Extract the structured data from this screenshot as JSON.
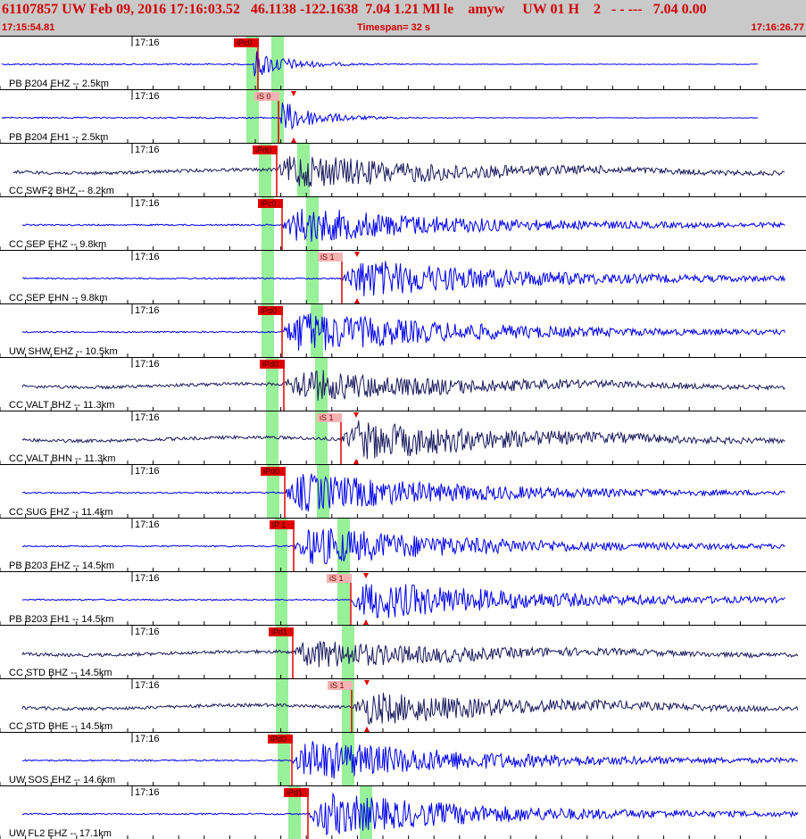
{
  "header": {
    "title": "61107857 UW Feb 09, 2016 17:16:03.52   46.1138 -122.1638  7.04 1.21 Ml le    amyw     UW 01 H    2   - - ---   7.04 0.00",
    "start_time": "17:15:54.81",
    "timespan": "Timespan=  32 s",
    "end_time": "17:16:26.77"
  },
  "colors": {
    "header_bg": "#c9c9c9",
    "header_text": "#d00000",
    "trace_blue": "#0000ee",
    "trace_navy": "#1a1a5e",
    "pick": "#e00000",
    "window": "#98f098"
  },
  "tick_label": "17:16",
  "traces": [
    {
      "label": "PB B204 EHZ -- 2.5km",
      "color": "blue",
      "pick": "iPc0",
      "pick_type": "P",
      "green": [
        283,
        311
      ],
      "onset": 285,
      "amp": 16,
      "pick_x": 262
    },
    {
      "label": "PB B204 EH1 -- 2.5km",
      "color": "blue",
      "pick": "iS 0",
      "pick_type": "S",
      "green": [
        283,
        311
      ],
      "onset": 314,
      "amp": 20,
      "pick_x": 285
    },
    {
      "label": "CC SWF2 BHZ -- 8.2km",
      "color": "navy",
      "pick": "iPd0",
      "pick_type": "P",
      "green": [
        297,
        340
      ],
      "onset": 310,
      "amp": 22,
      "pick_x": 283
    },
    {
      "label": "CC SEP EHZ -- 9.8km",
      "color": "blue",
      "pick": "iPc0",
      "pick_type": "P",
      "green": [
        300,
        350
      ],
      "onset": 316,
      "amp": 22,
      "pick_x": 289
    },
    {
      "label": "CC SEP EHN -- 9.8km",
      "color": "blue",
      "pick": "iS 1",
      "pick_type": "S",
      "green": [
        300,
        350
      ],
      "onset": 383,
      "amp": 24,
      "pick_x": 356
    },
    {
      "label": "UW SHW EHZ -- 10.5km",
      "color": "blue",
      "pick": "iPd0",
      "pick_type": "P",
      "green": [
        300,
        355
      ],
      "onset": 316,
      "amp": 26,
      "pick_x": 289
    },
    {
      "label": "CC VALT BHZ -- 11.3km",
      "color": "navy",
      "pick": "iPd0",
      "pick_type": "P",
      "green": [
        305,
        360
      ],
      "onset": 318,
      "amp": 20,
      "pick_x": 291
    },
    {
      "label": "CC VALT BHN -- 11.3km",
      "color": "navy",
      "pick": "iS 1",
      "pick_type": "S",
      "green": [
        305,
        360
      ],
      "onset": 382,
      "amp": 24,
      "pick_x": 355
    },
    {
      "label": "CC SUG EHZ -- 11.4km",
      "color": "blue",
      "pick": "iPd0",
      "pick_type": "P",
      "green": [
        306,
        362
      ],
      "onset": 319,
      "amp": 24,
      "pick_x": 292
    },
    {
      "label": "PB B203 EHZ -- 14.5km",
      "color": "blue",
      "pick": "iP 1",
      "pick_type": "P",
      "green": [
        315,
        385
      ],
      "onset": 329,
      "amp": 24,
      "pick_x": 302
    },
    {
      "label": "PB B203 EH1 -- 14.5km",
      "color": "blue",
      "pick": "iS 1",
      "pick_type": "S",
      "green": [
        315,
        385
      ],
      "onset": 393,
      "amp": 24,
      "pick_x": 366
    },
    {
      "label": "CC STD BHZ -- 14.5km",
      "color": "navy",
      "pick": "iPd1",
      "pick_type": "P",
      "green": [
        316,
        390
      ],
      "onset": 328,
      "amp": 18,
      "pick_x": 301
    },
    {
      "label": "CC STD BHE -- 14.5km",
      "color": "navy",
      "pick": "iS 1",
      "pick_type": "S",
      "green": [
        316,
        390
      ],
      "onset": 394,
      "amp": 20,
      "pick_x": 367
    },
    {
      "label": "UW SOS EHZ -- 14.6km",
      "color": "blue",
      "pick": "iPd0",
      "pick_type": "P",
      "green": [
        318,
        390
      ],
      "onset": 327,
      "amp": 26,
      "pick_x": 300
    },
    {
      "label": "UW FL2 EHZ -- 17.1km",
      "color": "blue",
      "pick": "iPd1",
      "pick_type": "P",
      "green": [
        330,
        410
      ],
      "onset": 345,
      "amp": 26,
      "pick_x": 318
    }
  ]
}
